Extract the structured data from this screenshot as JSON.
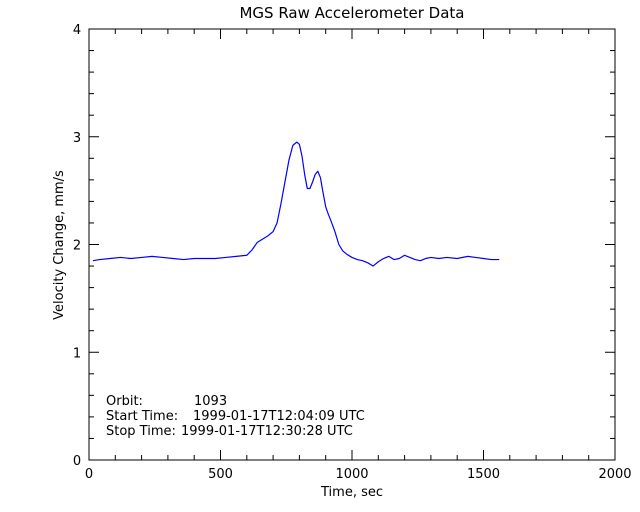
{
  "chart_data": {
    "type": "line",
    "title": "MGS Raw Accelerometer Data",
    "xlabel": "Time, sec",
    "ylabel": "Velocity Change, mm/s",
    "xlim": [
      0,
      2000
    ],
    "ylim": [
      0,
      4
    ],
    "x_ticks": [
      0,
      500,
      1000,
      1500,
      2000
    ],
    "x_tick_labels": [
      "0",
      "500",
      "1000",
      "1500",
      "2000"
    ],
    "y_ticks": [
      0,
      1,
      2,
      3,
      4
    ],
    "y_tick_labels": [
      "0",
      "1",
      "2",
      "3",
      "4"
    ],
    "grid": false,
    "legend": "none",
    "series": [
      {
        "color": "#0000ff",
        "x": [
          15,
          40,
          80,
          120,
          160,
          200,
          240,
          280,
          320,
          360,
          400,
          440,
          480,
          520,
          560,
          600,
          620,
          640,
          660,
          680,
          700,
          715,
          730,
          745,
          760,
          775,
          790,
          800,
          810,
          820,
          830,
          840,
          850,
          860,
          870,
          880,
          890,
          900,
          910,
          920,
          935,
          950,
          965,
          980,
          1000,
          1020,
          1040,
          1060,
          1080,
          1100,
          1120,
          1140,
          1160,
          1180,
          1200,
          1220,
          1240,
          1260,
          1280,
          1300,
          1330,
          1360,
          1400,
          1440,
          1470,
          1500,
          1530,
          1560
        ],
        "y": [
          1.85,
          1.86,
          1.87,
          1.88,
          1.87,
          1.88,
          1.89,
          1.88,
          1.87,
          1.86,
          1.87,
          1.87,
          1.87,
          1.88,
          1.89,
          1.9,
          1.95,
          2.02,
          2.05,
          2.08,
          2.12,
          2.2,
          2.38,
          2.58,
          2.78,
          2.92,
          2.95,
          2.93,
          2.82,
          2.65,
          2.52,
          2.52,
          2.58,
          2.65,
          2.68,
          2.62,
          2.48,
          2.35,
          2.28,
          2.22,
          2.12,
          2.0,
          1.94,
          1.91,
          1.88,
          1.86,
          1.85,
          1.83,
          1.8,
          1.84,
          1.87,
          1.89,
          1.86,
          1.87,
          1.9,
          1.88,
          1.86,
          1.85,
          1.87,
          1.88,
          1.87,
          1.88,
          1.87,
          1.89,
          1.88,
          1.87,
          1.86,
          1.86
        ]
      }
    ],
    "annotations": [
      {
        "label": "Orbit:",
        "value": "1093"
      },
      {
        "label": "Start Time:",
        "value": "1999-01-17T12:04:09 UTC"
      },
      {
        "label": "Stop Time:",
        "value": "1999-01-17T12:30:28 UTC"
      }
    ]
  }
}
